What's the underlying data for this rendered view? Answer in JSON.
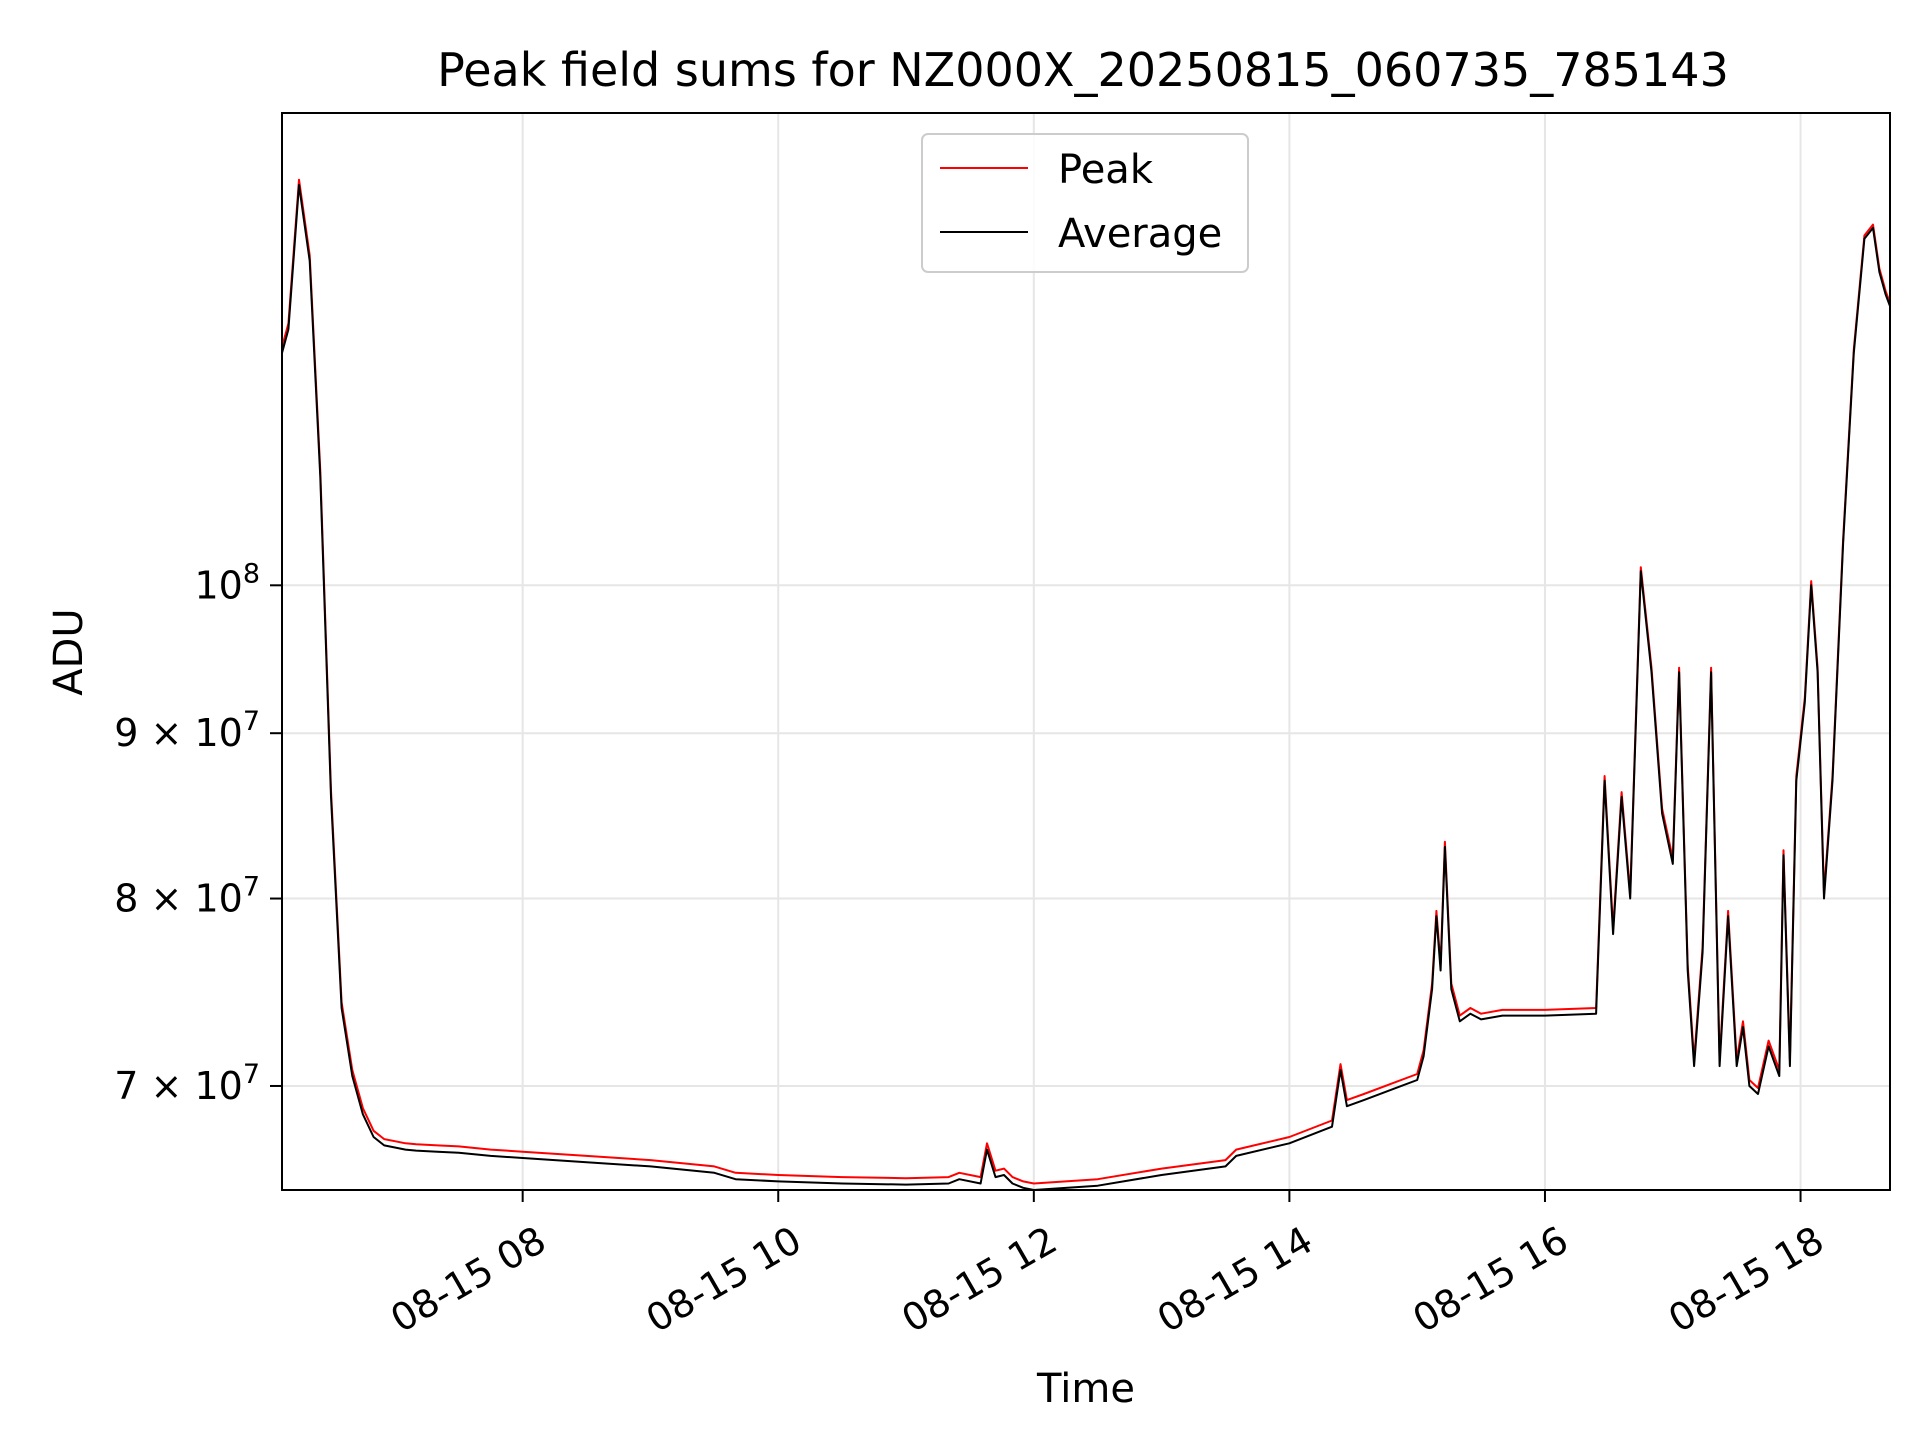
{
  "chart_data": {
    "type": "line",
    "title": "Peak field sums for NZ000X_20250815_060735_785143",
    "xlabel": "Time",
    "ylabel": "ADU",
    "y_scale": "log",
    "grid": true,
    "legend_position": "upper center",
    "x_range": [
      "08-15 06:07",
      "08-15 18:42"
    ],
    "ylim": [
      65000000,
      140000000
    ],
    "x_ticks": [
      {
        "value": "08-15 08:00",
        "label": "08-15 08"
      },
      {
        "value": "08-15 10:00",
        "label": "08-15 10"
      },
      {
        "value": "08-15 12:00",
        "label": "08-15 12"
      },
      {
        "value": "08-15 14:00",
        "label": "08-15 14"
      },
      {
        "value": "08-15 16:00",
        "label": "08-15 16"
      },
      {
        "value": "08-15 18:00",
        "label": "08-15 18"
      }
    ],
    "y_ticks": [
      {
        "value": 70000000,
        "coef": "7",
        "exp": "7"
      },
      {
        "value": 80000000,
        "coef": "8",
        "exp": "7"
      },
      {
        "value": 90000000,
        "coef": "9",
        "exp": "7"
      },
      {
        "value": 100000000,
        "coef": "",
        "exp": "8"
      }
    ],
    "series": [
      {
        "name": "Peak",
        "color": "#ff0000"
      },
      {
        "name": "Average",
        "color": "#000000"
      }
    ],
    "x": [
      "06:07",
      "06:10",
      "06:15",
      "06:20",
      "06:25",
      "06:30",
      "06:35",
      "06:40",
      "06:45",
      "06:50",
      "06:55",
      "07:00",
      "07:05",
      "07:10",
      "07:20",
      "07:30",
      "07:45",
      "08:00",
      "08:30",
      "09:00",
      "09:30",
      "09:40",
      "10:00",
      "10:30",
      "11:00",
      "11:20",
      "11:25",
      "11:35",
      "11:38",
      "11:42",
      "11:46",
      "11:50",
      "11:55",
      "12:00",
      "12:30",
      "13:00",
      "13:30",
      "13:35",
      "14:00",
      "14:20",
      "14:24",
      "14:27",
      "14:35",
      "15:00",
      "15:03",
      "15:07",
      "15:09",
      "15:11",
      "15:13",
      "15:16",
      "15:20",
      "15:25",
      "15:30",
      "15:40",
      "16:00",
      "16:24",
      "16:28",
      "16:32",
      "16:36",
      "16:40",
      "16:45",
      "16:50",
      "16:55",
      "17:00",
      "17:03",
      "17:07",
      "17:10",
      "17:14",
      "17:18",
      "17:22",
      "17:26",
      "17:30",
      "17:33",
      "17:36",
      "17:40",
      "17:45",
      "17:50",
      "17:52",
      "17:55",
      "17:58",
      "18:02",
      "18:05",
      "18:08",
      "18:11",
      "18:15",
      "18:20",
      "18:25",
      "18:30",
      "18:34",
      "18:37",
      "18:40",
      "18:42"
    ],
    "values_average": [
      118000000,
      120000000,
      133000000,
      126000000,
      108000000,
      86000000,
      74000000,
      70500000,
      68600000,
      67500000,
      67100000,
      67000000,
      66900000,
      66850000,
      66800000,
      66750000,
      66600000,
      66500000,
      66300000,
      66100000,
      65800000,
      65500000,
      65400000,
      65300000,
      65250000,
      65300000,
      65500000,
      65300000,
      66900000,
      65600000,
      65700000,
      65300000,
      65100000,
      65000000,
      65200000,
      65700000,
      66100000,
      66600000,
      67200000,
      68000000,
      70800000,
      69000000,
      69300000,
      70300000,
      71500000,
      75000000,
      79000000,
      76000000,
      83000000,
      75000000,
      73300000,
      73700000,
      73400000,
      73600000,
      73600000,
      73700000,
      87000000,
      78000000,
      86000000,
      80000000,
      101000000,
      94000000,
      85000000,
      82000000,
      94000000,
      76000000,
      71000000,
      77000000,
      94000000,
      71000000,
      79000000,
      71000000,
      73000000,
      70000000,
      69600000,
      72000000,
      70500000,
      82500000,
      71000000,
      87000000,
      92000000,
      100000000,
      94000000,
      80000000,
      87000000,
      103000000,
      118000000,
      128000000,
      129000000,
      125000000,
      123000000,
      122000000
    ],
    "values_peak": [
      118500000,
      120500000,
      133500000,
      126500000,
      108500000,
      86400000,
      74300000,
      70800000,
      68900000,
      67800000,
      67400000,
      67300000,
      67200000,
      67150000,
      67100000,
      67050000,
      66900000,
      66800000,
      66600000,
      66400000,
      66100000,
      65800000,
      65700000,
      65600000,
      65550000,
      65600000,
      65800000,
      65600000,
      67200000,
      65900000,
      66000000,
      65600000,
      65400000,
      65300000,
      65500000,
      66000000,
      66400000,
      66900000,
      67500000,
      68300000,
      71100000,
      69300000,
      69600000,
      70600000,
      71800000,
      75300000,
      79300000,
      76300000,
      83300000,
      75300000,
      73600000,
      74000000,
      73700000,
      73900000,
      73900000,
      74000000,
      87300000,
      78300000,
      86300000,
      80300000,
      101300000,
      94300000,
      85300000,
      82300000,
      94300000,
      76300000,
      71300000,
      77300000,
      94300000,
      71300000,
      79300000,
      71300000,
      73300000,
      70300000,
      69900000,
      72300000,
      70800000,
      82800000,
      71300000,
      87300000,
      92300000,
      100300000,
      94300000,
      80300000,
      87300000,
      103300000,
      118300000,
      128300000,
      129300000,
      125300000,
      123300000,
      122300000
    ]
  }
}
